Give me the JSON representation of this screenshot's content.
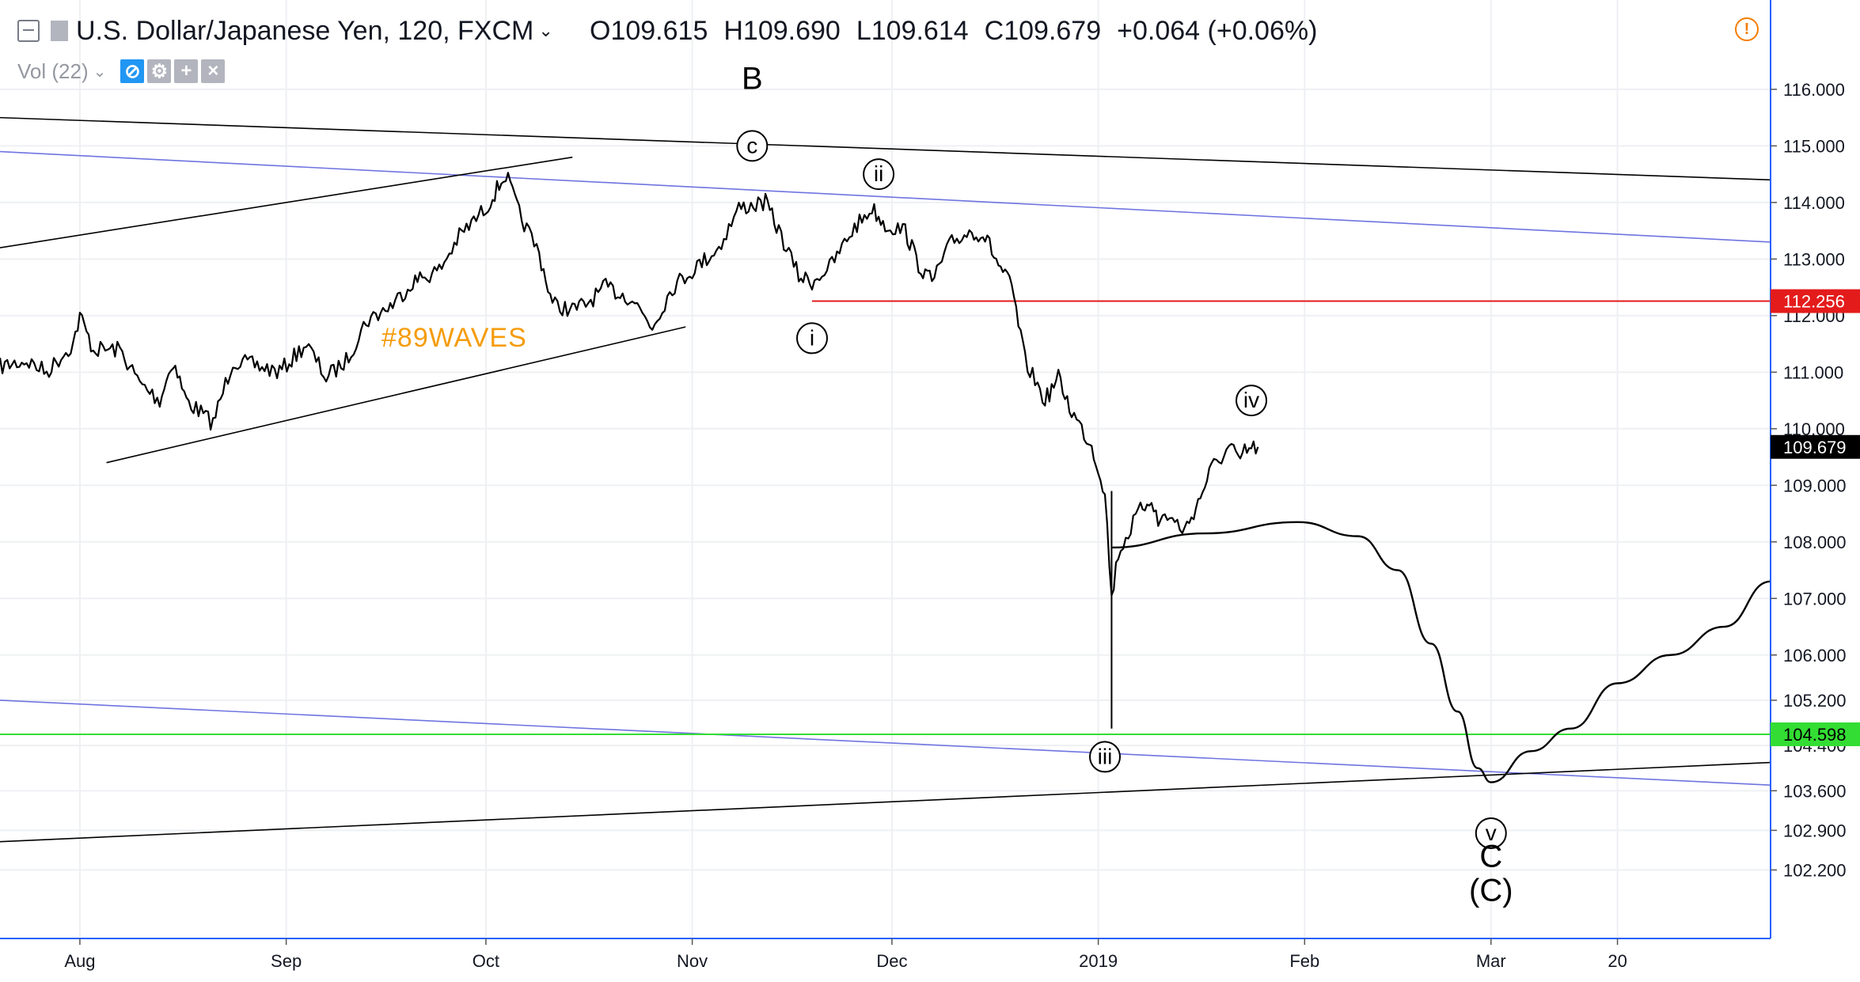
{
  "header": {
    "symbol": "U.S. Dollar/Japanese Yen, 120, FXCM",
    "open_label": "O",
    "open": "109.615",
    "high_label": "H",
    "high": "109.690",
    "low_label": "L",
    "low": "109.614",
    "close_label": "C",
    "close": "109.679",
    "change": "+0.064 (+0.06%)"
  },
  "indicator": {
    "label": "Vol (22)"
  },
  "watermark": "#89WAVES",
  "colors": {
    "price": "#000000",
    "channel": "#6f74e0",
    "trendline": "#000000",
    "resistance": "#e41b1b",
    "support": "#33dd33",
    "watermark": "#f59c0b",
    "axis": "#2962ff",
    "grid": "#eef0f3",
    "price_tag_bg": "#000000",
    "alert_icon": "#f57c00"
  },
  "chart_data": {
    "type": "line",
    "title": "U.S. Dollar/Japanese Yen, 120, FXCM",
    "ylim": [
      101.8,
      116.6
    ],
    "y_ticks": [
      "116.000",
      "115.000",
      "114.000",
      "113.000",
      "112.000",
      "111.000",
      "110.000",
      "109.000",
      "108.000",
      "107.000",
      "106.000",
      "105.200",
      "104.400",
      "103.600",
      "102.900",
      "102.200"
    ],
    "x_ticks": [
      {
        "label": "Aug",
        "date": "2018-08-01"
      },
      {
        "label": "Sep",
        "date": "2018-09-01"
      },
      {
        "label": "Oct",
        "date": "2018-10-01"
      },
      {
        "label": "Nov",
        "date": "2018-11-01"
      },
      {
        "label": "Dec",
        "date": "2018-12-01"
      },
      {
        "label": "2019",
        "date": "2019-01-01"
      },
      {
        "label": "Feb",
        "date": "2019-02-01"
      },
      {
        "label": "Mar",
        "date": "2019-03-01"
      },
      {
        "label": "20",
        "date": "2019-03-20"
      }
    ],
    "grid": true,
    "series": [
      {
        "values": [
          [
            "2018-07-20",
            111.1
          ],
          [
            "2018-07-24",
            111.2
          ],
          [
            "2018-07-27",
            111.0
          ],
          [
            "2018-07-31",
            111.5
          ],
          [
            "2018-08-01",
            112.0
          ],
          [
            "2018-08-03",
            111.4
          ],
          [
            "2018-08-07",
            111.4
          ],
          [
            "2018-08-10",
            110.8
          ],
          [
            "2018-08-13",
            110.5
          ],
          [
            "2018-08-15",
            111.2
          ],
          [
            "2018-08-17",
            110.5
          ],
          [
            "2018-08-21",
            110.1
          ],
          [
            "2018-08-24",
            111.2
          ],
          [
            "2018-08-28",
            111.1
          ],
          [
            "2018-08-31",
            111.0
          ],
          [
            "2018-09-04",
            111.5
          ],
          [
            "2018-09-07",
            110.9
          ],
          [
            "2018-09-10",
            111.2
          ],
          [
            "2018-09-13",
            111.9
          ],
          [
            "2018-09-17",
            112.2
          ],
          [
            "2018-09-20",
            112.6
          ],
          [
            "2018-09-24",
            112.8
          ],
          [
            "2018-09-27",
            113.4
          ],
          [
            "2018-10-01",
            113.9
          ],
          [
            "2018-10-03",
            114.3
          ],
          [
            "2018-10-04",
            114.5
          ],
          [
            "2018-10-06",
            113.8
          ],
          [
            "2018-10-09",
            113.1
          ],
          [
            "2018-10-11",
            112.2
          ],
          [
            "2018-10-14",
            112.1
          ],
          [
            "2018-10-16",
            112.2
          ],
          [
            "2018-10-19",
            112.5
          ],
          [
            "2018-10-23",
            112.3
          ],
          [
            "2018-10-26",
            111.8
          ],
          [
            "2018-10-29",
            112.5
          ],
          [
            "2018-11-01",
            112.8
          ],
          [
            "2018-11-05",
            113.2
          ],
          [
            "2018-11-08",
            113.9
          ],
          [
            "2018-11-12",
            114.0
          ],
          [
            "2018-11-14",
            113.5
          ],
          [
            "2018-11-17",
            112.7
          ],
          [
            "2018-11-19",
            112.6
          ],
          [
            "2018-11-22",
            112.9
          ],
          [
            "2018-11-25",
            113.5
          ],
          [
            "2018-11-28",
            113.9
          ],
          [
            "2018-11-30",
            113.6
          ],
          [
            "2018-12-03",
            113.5
          ],
          [
            "2018-12-05",
            112.9
          ],
          [
            "2018-12-07",
            112.6
          ],
          [
            "2018-12-10",
            113.3
          ],
          [
            "2018-12-13",
            113.5
          ],
          [
            "2018-12-15",
            113.4
          ],
          [
            "2018-12-17",
            112.9
          ],
          [
            "2018-12-19",
            112.5
          ],
          [
            "2018-12-21",
            111.2
          ],
          [
            "2018-12-24",
            110.5
          ],
          [
            "2018-12-26",
            110.9
          ],
          [
            "2018-12-28",
            110.3
          ],
          [
            "2018-12-31",
            109.7
          ],
          [
            "2019-01-02",
            108.9
          ],
          [
            "2019-01-03",
            107.0
          ],
          [
            "2019-01-04",
            107.8
          ],
          [
            "2019-01-07",
            108.5
          ],
          [
            "2019-01-09",
            108.8
          ],
          [
            "2019-01-10",
            108.3
          ],
          [
            "2019-01-11",
            108.5
          ],
          [
            "2019-01-14",
            108.2
          ],
          [
            "2019-01-16",
            108.7
          ],
          [
            "2019-01-18",
            109.3
          ],
          [
            "2019-01-21",
            109.7
          ],
          [
            "2019-01-22",
            109.4
          ],
          [
            "2019-01-23",
            109.6
          ],
          [
            "2019-01-25",
            109.679
          ]
        ]
      },
      {
        "values": [
          [
            "2019-01-03",
            107.9
          ],
          [
            "2019-01-17",
            108.15
          ],
          [
            "2019-01-31",
            108.35
          ],
          [
            "2019-02-09",
            108.1
          ],
          [
            "2019-02-15",
            107.5
          ],
          [
            "2019-02-20",
            106.2
          ],
          [
            "2019-02-24",
            105.0
          ],
          [
            "2019-02-27",
            104.0
          ],
          [
            "2019-03-01",
            103.75
          ],
          [
            "2019-03-07",
            104.3
          ],
          [
            "2019-03-13",
            104.7
          ],
          [
            "2019-03-20",
            105.5
          ],
          [
            "2019-03-28",
            106.0
          ],
          [
            "2019-04-05",
            106.5
          ],
          [
            "2019-04-12",
            107.3
          ]
        ]
      }
    ],
    "annotations": [
      {
        "text": "B",
        "date": "2018-11-10",
        "y": 116.2,
        "style": "plain"
      },
      {
        "text": "c",
        "date": "2018-11-10",
        "y": 115.0,
        "style": "circle"
      },
      {
        "text": "ii",
        "date": "2018-11-29",
        "y": 114.5,
        "style": "circle"
      },
      {
        "text": "i",
        "date": "2018-11-19",
        "y": 111.6,
        "style": "circle"
      },
      {
        "text": "iv",
        "date": "2019-01-24",
        "y": 110.5,
        "style": "circle"
      },
      {
        "text": "iii",
        "date": "2019-01-02",
        "y": 104.2,
        "style": "circle"
      },
      {
        "text": "v",
        "date": "2019-03-01",
        "y": 102.85,
        "style": "circle"
      },
      {
        "text": "C",
        "date": "2019-03-01",
        "y": 102.45,
        "style": "plain"
      },
      {
        "text": "(C)",
        "date": "2019-03-01",
        "y": 101.85,
        "style": "plain"
      }
    ],
    "horizontal_lines": [
      {
        "y": 112.256,
        "label": "112.256",
        "color": "#e41b1b",
        "from": "2018-11-19"
      },
      {
        "y": 104.598,
        "label": "104.598",
        "color": "#33dd33",
        "from": "2018-07-20"
      }
    ],
    "trendlines": [
      {
        "kind": "channel",
        "from": [
          "2018-07-20",
          114.9
        ],
        "to": [
          "2019-04-12",
          113.3
        ]
      },
      {
        "kind": "channel",
        "from": [
          "2018-07-20",
          105.2
        ],
        "to": [
          "2019-04-12",
          103.7
        ]
      },
      {
        "kind": "trendline",
        "from": [
          "2018-07-20",
          115.5
        ],
        "to": [
          "2019-04-12",
          114.4
        ]
      },
      {
        "kind": "trendline",
        "from": [
          "2018-07-20",
          113.2
        ],
        "to": [
          "2018-10-14",
          114.8
        ]
      },
      {
        "kind": "trendline",
        "from": [
          "2018-08-05",
          109.4
        ],
        "to": [
          "2018-10-31",
          111.8
        ]
      },
      {
        "kind": "trendline",
        "from": [
          "2018-07-20",
          102.7
        ],
        "to": [
          "2019-04-12",
          104.1
        ]
      }
    ],
    "last_price": {
      "y": 109.679,
      "label": "109.679"
    }
  }
}
